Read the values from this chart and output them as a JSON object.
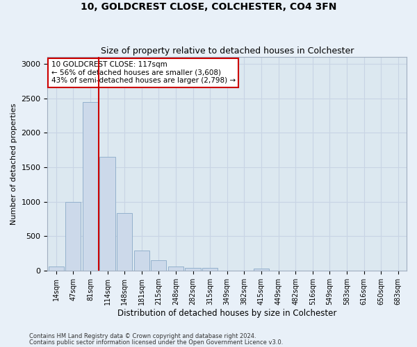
{
  "title1": "10, GOLDCREST CLOSE, COLCHESTER, CO4 3FN",
  "title2": "Size of property relative to detached houses in Colchester",
  "xlabel": "Distribution of detached houses by size in Colchester",
  "ylabel": "Number of detached properties",
  "bar_labels": [
    "14sqm",
    "47sqm",
    "81sqm",
    "114sqm",
    "148sqm",
    "181sqm",
    "215sqm",
    "248sqm",
    "282sqm",
    "315sqm",
    "349sqm",
    "382sqm",
    "415sqm",
    "449sqm",
    "482sqm",
    "516sqm",
    "549sqm",
    "583sqm",
    "616sqm",
    "650sqm",
    "683sqm"
  ],
  "bar_values": [
    55,
    1000,
    2450,
    1650,
    830,
    295,
    150,
    55,
    40,
    35,
    0,
    0,
    30,
    0,
    0,
    0,
    0,
    0,
    0,
    0,
    0
  ],
  "bar_color": "#ccd9ea",
  "bar_edgecolor": "#8aaac8",
  "vline_color": "#cc0000",
  "annotation_text": "10 GOLDCREST CLOSE: 117sqm\n← 56% of detached houses are smaller (3,608)\n43% of semi-detached houses are larger (2,798) →",
  "annotation_box_color": "#ffffff",
  "annotation_box_edgecolor": "#cc0000",
  "ylim": [
    0,
    3100
  ],
  "yticks": [
    0,
    500,
    1000,
    1500,
    2000,
    2500,
    3000
  ],
  "grid_color": "#c8d4e4",
  "bg_color": "#dce8f0",
  "fig_color": "#e8f0f8",
  "footer1": "Contains HM Land Registry data © Crown copyright and database right 2024.",
  "footer2": "Contains public sector information licensed under the Open Government Licence v3.0."
}
